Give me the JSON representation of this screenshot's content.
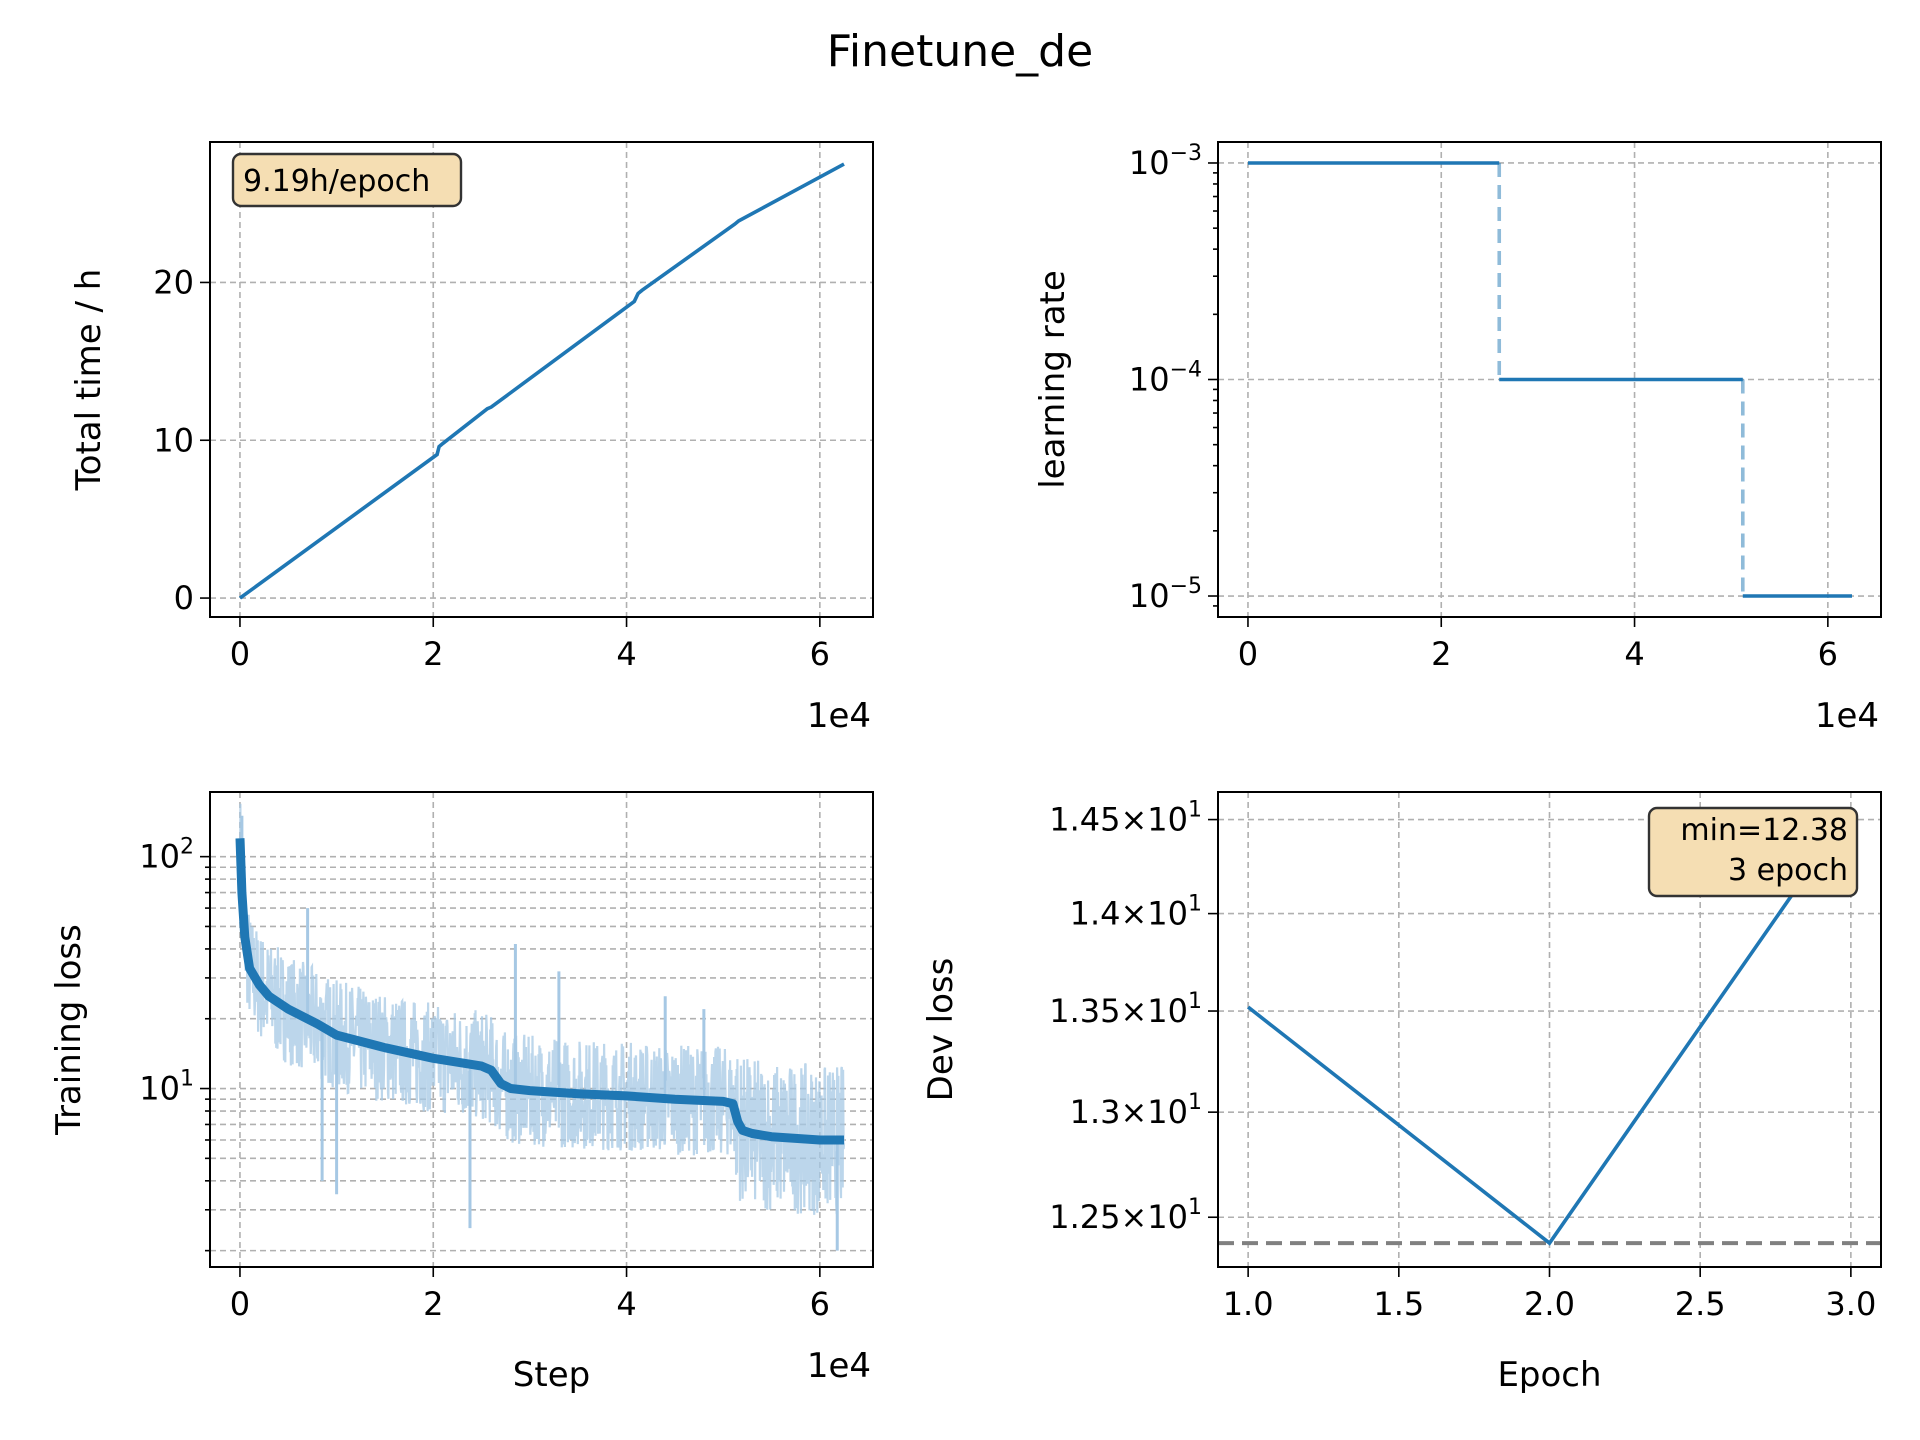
{
  "figure": {
    "title": "Finetune_de",
    "colors": {
      "line": "#1f77b4",
      "light": "#a6c8e4",
      "grid": "#b0b0b0",
      "annot_fill": "#f5deb3",
      "annot_edge": "#333333",
      "hline": "#808080"
    }
  },
  "chart_data": [
    {
      "id": "time",
      "type": "line",
      "xlabel": "",
      "ylabel": "Total time / h",
      "offset_text": "1e4",
      "xlim": [
        -0.31,
        6.55
      ],
      "ylim": [
        -1.2,
        28.9
      ],
      "x_ticks": [
        0,
        2,
        4,
        6
      ],
      "y_ticks": [
        0,
        10,
        20
      ],
      "x_tick_labels": [
        "0",
        "2",
        "4",
        "6"
      ],
      "y_tick_labels": [
        "0",
        "10",
        "20"
      ],
      "annotation": "9.19h/epoch",
      "annotation_pos": "top-left",
      "grid": true,
      "series": [
        {
          "x": [
            0,
            2.04,
            2.06,
            2.1,
            2.56,
            2.6,
            4.08,
            4.12,
            4.16,
            5.12,
            5.16,
            6.25
          ],
          "y": [
            0,
            9.1,
            9.6,
            9.8,
            12.0,
            12.1,
            18.8,
            19.3,
            19.5,
            23.7,
            23.9,
            27.5
          ]
        }
      ]
    },
    {
      "id": "lr",
      "type": "line",
      "xlabel": "",
      "ylabel": "learning rate",
      "offset_text": "1e4",
      "yscale": "log",
      "xlim": [
        -0.31,
        6.55
      ],
      "ylim": [
        8e-06,
        0.00125
      ],
      "x_ticks": [
        0,
        2,
        4,
        6
      ],
      "x_tick_labels": [
        "0",
        "2",
        "4",
        "6"
      ],
      "y_ticks": [
        1e-05,
        0.0001,
        0.001
      ],
      "y_tick_bases": [
        "10",
        "10",
        "10"
      ],
      "y_tick_exps": [
        "−5",
        "−4",
        "−3"
      ],
      "grid": true,
      "segments": [
        {
          "x": [
            0,
            2.6
          ],
          "y": [
            0.001,
            0.001
          ]
        },
        {
          "x": [
            2.6,
            5.12
          ],
          "y": [
            0.0001,
            0.0001
          ]
        },
        {
          "x": [
            5.12,
            6.25
          ],
          "y": [
            1e-05,
            1e-05
          ]
        }
      ],
      "drops": [
        {
          "x": 2.6,
          "y": [
            0.001,
            0.0001
          ]
        },
        {
          "x": 5.12,
          "y": [
            0.0001,
            1e-05
          ]
        }
      ]
    },
    {
      "id": "train",
      "type": "line",
      "xlabel": "Step",
      "ylabel": "Training loss",
      "offset_text": "1e4",
      "yscale": "log",
      "xlim": [
        -0.31,
        6.55
      ],
      "ylim": [
        1.7,
        190
      ],
      "x_ticks": [
        0,
        2,
        4,
        6
      ],
      "x_tick_labels": [
        "0",
        "2",
        "4",
        "6"
      ],
      "y_ticks": [
        10,
        100
      ],
      "y_tick_bases": [
        "10",
        "10"
      ],
      "y_tick_exps": [
        "1",
        "2"
      ],
      "grid": true,
      "smoothed": {
        "x": [
          0,
          0.02,
          0.05,
          0.1,
          0.2,
          0.3,
          0.5,
          0.8,
          1.0,
          1.5,
          2.0,
          2.5,
          2.6,
          2.7,
          2.8,
          3.0,
          3.5,
          4.0,
          4.5,
          5.0,
          5.1,
          5.15,
          5.2,
          5.3,
          5.5,
          6.0,
          6.25
        ],
        "y": [
          120,
          70,
          45,
          33,
          28,
          25,
          22,
          19,
          17,
          15,
          13.5,
          12.5,
          12,
          10.5,
          10,
          9.8,
          9.5,
          9.3,
          9.0,
          8.8,
          8.6,
          7.2,
          6.6,
          6.4,
          6.2,
          6.0,
          6.0
        ]
      },
      "spikes": [
        {
          "x": 0.02,
          "y": 150
        },
        {
          "x": 0.7,
          "y": 60
        },
        {
          "x": 0.85,
          "y": 4
        },
        {
          "x": 1.0,
          "y": 3.5
        },
        {
          "x": 2.38,
          "y": 2.5
        },
        {
          "x": 2.85,
          "y": 42
        },
        {
          "x": 3.3,
          "y": 32
        },
        {
          "x": 4.4,
          "y": 25
        },
        {
          "x": 4.8,
          "y": 22
        },
        {
          "x": 6.18,
          "y": 2.0
        }
      ]
    },
    {
      "id": "dev",
      "type": "line",
      "xlabel": "Epoch",
      "ylabel": "Dev loss",
      "yscale": "log",
      "xlim": [
        0.9,
        3.1
      ],
      "ylim": [
        12.27,
        14.65
      ],
      "x_ticks": [
        1.0,
        1.5,
        2.0,
        2.5,
        3.0
      ],
      "x_tick_labels": [
        "1.0",
        "1.5",
        "2.0",
        "2.5",
        "3.0"
      ],
      "y_ticks": [
        12.5,
        13.0,
        13.5,
        14.0,
        14.5
      ],
      "y_tick_mantissas": [
        "1.25",
        "1.3",
        "1.35",
        "1.4",
        "1.45"
      ],
      "y_tick_bases": [
        "10",
        "10",
        "10",
        "10",
        "10"
      ],
      "y_tick_exps": [
        "1",
        "1",
        "1",
        "1",
        "1"
      ],
      "annotation_lines": [
        "min=12.38",
        "3 epoch"
      ],
      "annotation_pos": "top-right",
      "hline": 12.38,
      "grid": true,
      "series": [
        {
          "x": [
            1,
            2,
            3
          ],
          "y": [
            13.52,
            12.38,
            14.55
          ]
        }
      ]
    }
  ]
}
